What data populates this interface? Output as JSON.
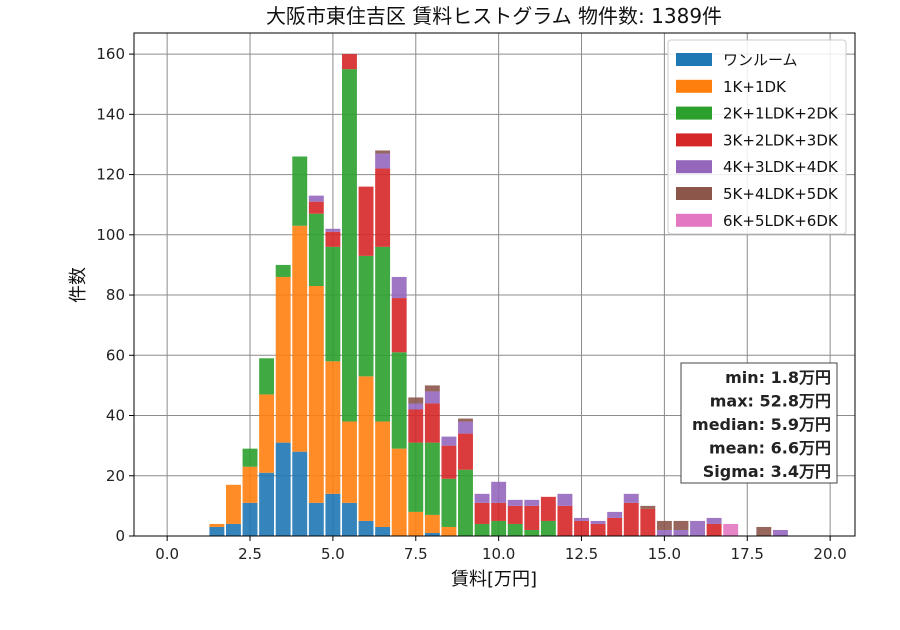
{
  "chart_data": {
    "type": "bar",
    "stacked": true,
    "title": "大阪市東住吉区 賃料ヒストグラム 物件数: 1389件",
    "xlabel": "賃料[万円]",
    "ylabel": "件数",
    "xlim": [
      -1.0,
      20.75
    ],
    "ylim": [
      0,
      167
    ],
    "xticks": [
      0.0,
      2.5,
      5.0,
      7.5,
      10.0,
      12.5,
      15.0,
      17.5,
      20.0
    ],
    "xtick_labels": [
      "0.0",
      "2.5",
      "5.0",
      "7.5",
      "10.0",
      "12.5",
      "15.0",
      "17.5",
      "20.0"
    ],
    "yticks": [
      0,
      20,
      40,
      60,
      80,
      100,
      120,
      140,
      160
    ],
    "ytick_labels": [
      "0",
      "20",
      "40",
      "60",
      "80",
      "100",
      "120",
      "140",
      "160"
    ],
    "grid": true,
    "legend_position": "top-right",
    "bin_width": 0.5,
    "x": [
      1.5,
      2.0,
      2.5,
      3.0,
      3.5,
      4.0,
      4.5,
      5.0,
      5.5,
      6.0,
      6.5,
      7.0,
      7.5,
      8.0,
      8.5,
      9.0,
      9.5,
      10.0,
      10.5,
      11.0,
      11.5,
      12.0,
      12.5,
      13.0,
      13.5,
      14.0,
      14.5,
      15.0,
      15.5,
      16.0,
      16.5,
      17.0,
      18.0,
      18.5
    ],
    "series": [
      {
        "name": "ワンルーム",
        "color": "#1f77b4",
        "values": [
          3,
          4,
          11,
          21,
          31,
          28,
          11,
          14,
          11,
          5,
          3,
          0,
          0,
          1,
          0,
          0,
          0,
          0,
          0,
          0,
          0,
          0,
          0,
          0,
          0,
          0,
          0,
          0,
          0,
          0,
          0,
          0,
          0,
          0
        ]
      },
      {
        "name": "1K+1DK",
        "color": "#ff7f0e",
        "values": [
          1,
          13,
          12,
          26,
          55,
          75,
          72,
          44,
          27,
          48,
          35,
          29,
          8,
          6,
          3,
          0,
          0,
          0,
          0,
          0,
          0,
          0,
          0,
          0,
          0,
          0,
          0,
          0,
          0,
          0,
          0,
          0,
          0,
          0
        ]
      },
      {
        "name": "2K+1LDK+2DK",
        "color": "#2ca02c",
        "values": [
          0,
          0,
          6,
          12,
          4,
          23,
          24,
          38,
          117,
          40,
          58,
          32,
          23,
          24,
          16,
          22,
          4,
          5,
          4,
          2,
          5,
          0,
          0,
          0,
          0,
          0,
          0,
          0,
          0,
          0,
          0,
          0,
          0,
          0
        ]
      },
      {
        "name": "3K+2LDK+3DK",
        "color": "#d62728",
        "values": [
          0,
          0,
          0,
          0,
          0,
          0,
          4,
          5,
          5,
          23,
          26,
          18,
          11,
          13,
          11,
          12,
          7,
          6,
          6,
          8,
          8,
          10,
          5,
          4,
          6,
          11,
          9,
          0,
          0,
          0,
          4,
          0,
          0,
          0
        ]
      },
      {
        "name": "4K+3LDK+4DK",
        "color": "#9467bd",
        "values": [
          0,
          0,
          0,
          0,
          0,
          0,
          2,
          1,
          0,
          0,
          5,
          7,
          2,
          4,
          3,
          4,
          3,
          7,
          2,
          2,
          0,
          4,
          1,
          1,
          2,
          3,
          0,
          2,
          2,
          5,
          2,
          0,
          0,
          2
        ]
      },
      {
        "name": "5K+4LDK+5DK",
        "color": "#8c564b",
        "values": [
          0,
          0,
          0,
          0,
          0,
          0,
          0,
          0,
          0,
          0,
          1,
          0,
          2,
          2,
          0,
          1,
          0,
          0,
          0,
          0,
          0,
          0,
          0,
          0,
          0,
          0,
          1,
          3,
          3,
          0,
          0,
          0,
          3,
          0
        ]
      },
      {
        "name": "6K+5LDK+6DK",
        "color": "#e377c2",
        "values": [
          0,
          0,
          0,
          0,
          0,
          0,
          0,
          0,
          0,
          0,
          0,
          0,
          0,
          0,
          0,
          0,
          0,
          0,
          0,
          0,
          0,
          0,
          0,
          0,
          0,
          0,
          0,
          0,
          0,
          0,
          0,
          4,
          0,
          0
        ]
      }
    ],
    "annotations": [
      "min: 1.8万円",
      "max: 52.8万円",
      "median: 5.9万円",
      "mean: 6.6万円",
      "Sigma: 3.4万円"
    ]
  }
}
